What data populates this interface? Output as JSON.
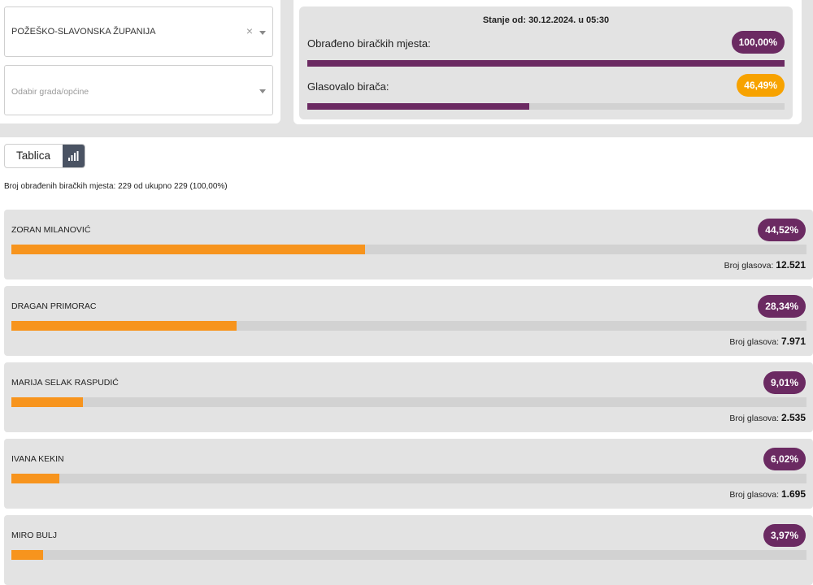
{
  "filters": {
    "county": "POŽEŠKO-SLAVONSKA ŽUPANIJA",
    "clear_icon": "×",
    "city_placeholder": "Odabir grada/općine"
  },
  "stats": {
    "date": "Stanje od: 30.12.2024. u 05:30",
    "processed_label": "Obrađeno biračkih mjesta:",
    "processed_pct": "100,00%",
    "processed_value": 100,
    "turnout_label": "Glasovalo birača:",
    "turnout_pct": "46,49%",
    "turnout_value": 46.49,
    "colors": {
      "purple": "#6b2a62",
      "orange": "#f7a200"
    }
  },
  "view": {
    "table_label": "Tablica",
    "chart_icon": "bar-chart-icon"
  },
  "summary": "Broj obrađenih biračkih mjesta: 229 od ukupno 229 (100,00%)",
  "votes_label": "Broj glasova:",
  "candidates": [
    {
      "name": "ZORAN MILANOVIĆ",
      "pct": "44,52%",
      "value": 44.52,
      "votes": "12.521"
    },
    {
      "name": "DRAGAN PRIMORAC",
      "pct": "28,34%",
      "value": 28.34,
      "votes": "7.971"
    },
    {
      "name": "MARIJA SELAK RASPUDIĆ",
      "pct": "9,01%",
      "value": 9.01,
      "votes": "2.535"
    },
    {
      "name": "IVANA KEKIN",
      "pct": "6,02%",
      "value": 6.02,
      "votes": "1.695"
    },
    {
      "name": "MIRO BULJ",
      "pct": "3,97%",
      "value": 3.97,
      "votes": ""
    }
  ]
}
